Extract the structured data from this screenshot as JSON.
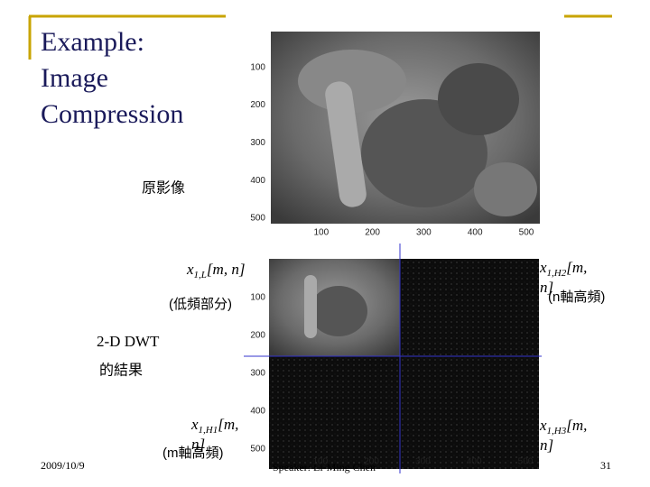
{
  "slide": {
    "title": [
      "Example:",
      "Image",
      "Compression"
    ],
    "original_label": "原影像",
    "original_image": {
      "yticks": [
        100,
        200,
        300,
        400,
        500
      ],
      "xticks": [
        100,
        200,
        300,
        400,
        500
      ]
    },
    "dwt_image": {
      "yticks": [
        100,
        200,
        300,
        400,
        500
      ],
      "xticks": [
        100,
        200,
        300,
        400,
        500
      ]
    },
    "low": {
      "var": "x",
      "sub": "1,L",
      "args": "[m, n]",
      "note": "(低頻部分)"
    },
    "h2": {
      "var": "x",
      "sub": "1,H2",
      "args": [
        "[m,",
        "n]"
      ],
      "note": "(n軸高頻)"
    },
    "h1": {
      "var": "x",
      "sub": "1,H1",
      "args": [
        "[m,",
        "n]"
      ],
      "note": "(m軸高頻)"
    },
    "h3": {
      "var": "x",
      "sub": "1,H3",
      "args": [
        "[m,",
        "n]"
      ]
    },
    "dwt_label": [
      "2-D DWT",
      "的結果"
    ],
    "footer": {
      "date": "2009/10/9",
      "speaker": "Speaker: Li-Ming Chen",
      "page": "31"
    }
  }
}
